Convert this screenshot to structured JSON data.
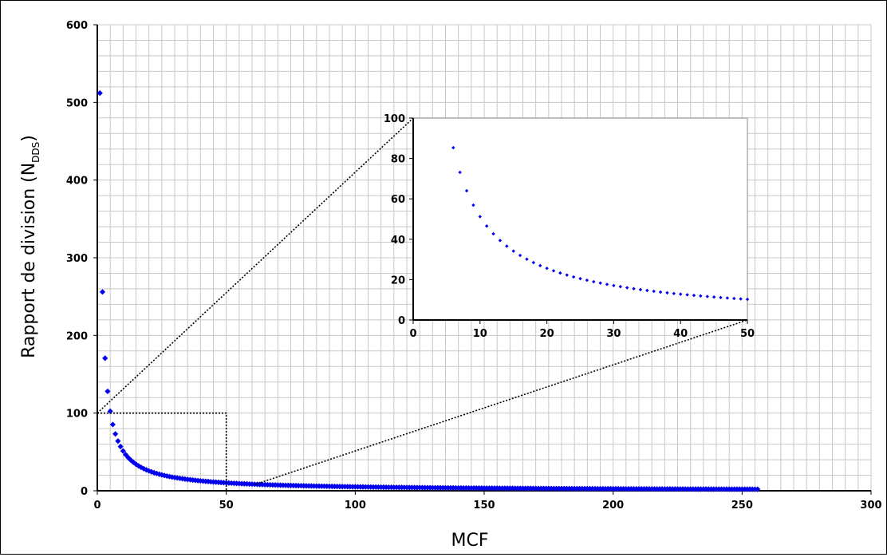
{
  "chart_data": [
    {
      "type": "scatter",
      "role": "main",
      "xlabel": "MCF",
      "ylabel": "Rapport de division (N",
      "ylabel_subscript": "DDS",
      "ylabel_close": ")",
      "xlim": [
        0,
        300
      ],
      "ylim": [
        0,
        600
      ],
      "xticks": [
        0,
        50,
        100,
        150,
        200,
        250,
        300
      ],
      "yticks": [
        0,
        100,
        200,
        300,
        400,
        500,
        600
      ],
      "grid": true,
      "marker_color": "#0000ee",
      "series": [
        {
          "formula": "y = 512 / x",
          "x_from": 1,
          "x_to": 256,
          "x_step": 1
        }
      ],
      "annotations": [
        {
          "kind": "zoom-box",
          "x": [
            0,
            50
          ],
          "y": [
            0,
            100
          ]
        }
      ]
    },
    {
      "type": "scatter",
      "role": "inset",
      "xlim": [
        0,
        50
      ],
      "ylim": [
        0,
        100
      ],
      "xticks": [
        0,
        10,
        20,
        30,
        40,
        50
      ],
      "yticks": [
        0,
        20,
        40,
        60,
        80,
        100
      ],
      "grid": false,
      "marker_color": "#0000ee",
      "series": [
        {
          "formula": "y = 512 / x",
          "x_from": 6,
          "x_to": 50,
          "x_step": 1
        }
      ]
    }
  ]
}
